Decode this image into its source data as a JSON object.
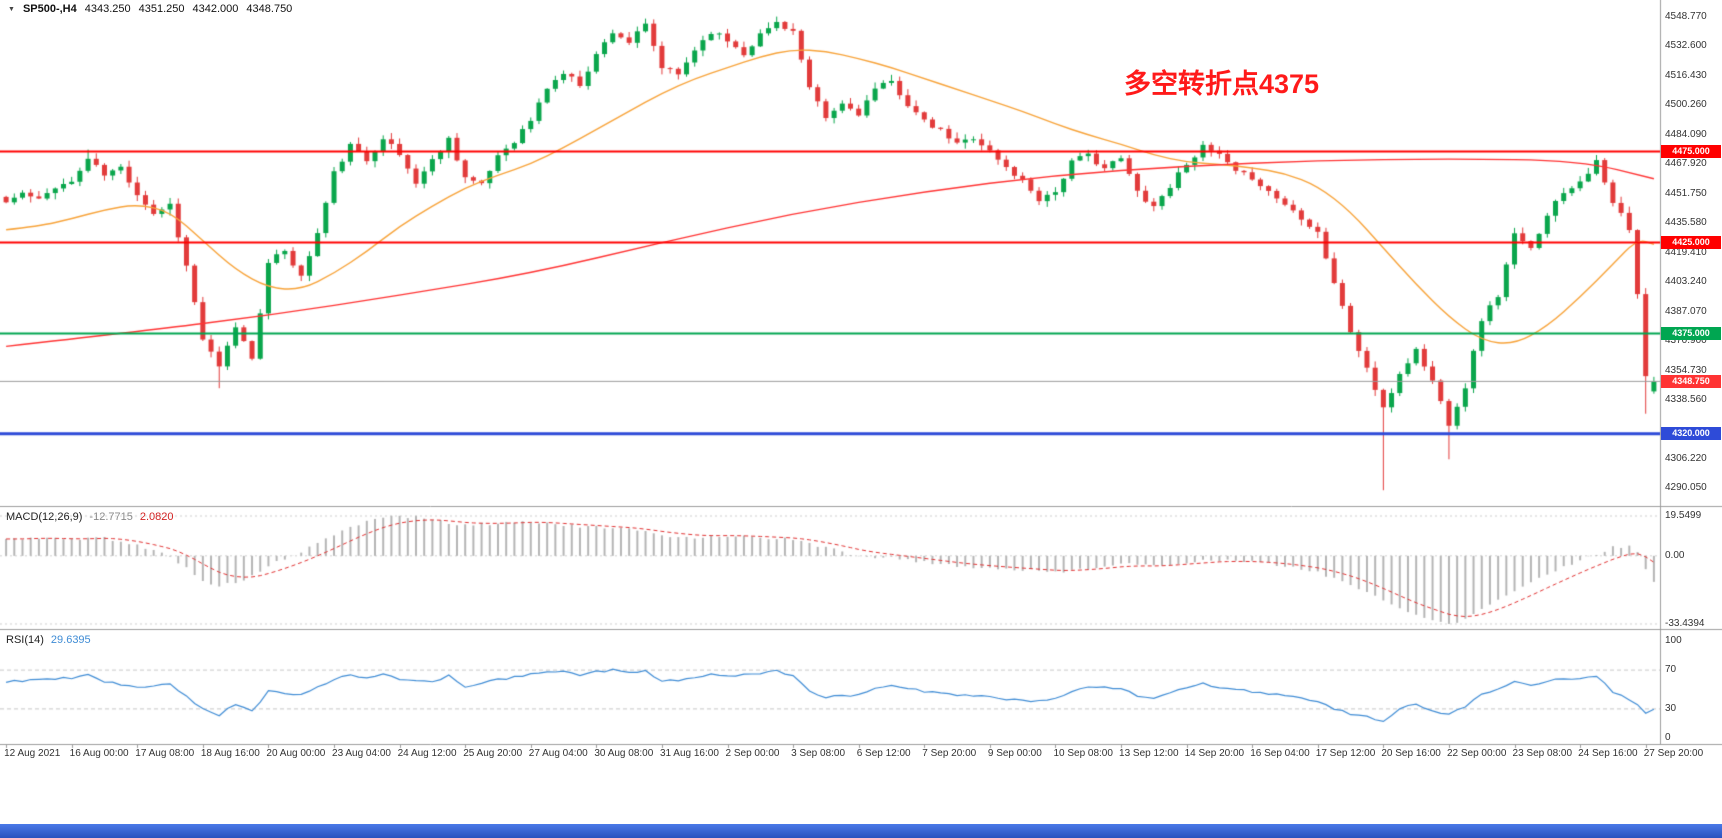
{
  "header": {
    "marker": "▼",
    "symbol": "SP500-,H4",
    "open": "4343.250",
    "high": "4351.250",
    "low": "4342.000",
    "close": "4348.750"
  },
  "annotation": {
    "text": "多空转折点4375",
    "color": "#ff1a1a"
  },
  "price_axis": {
    "labels": [
      "4548.770",
      "4532.600",
      "4516.430",
      "4500.260",
      "4484.090",
      "4467.920",
      "4451.750",
      "4435.580",
      "4419.410",
      "4403.240",
      "4387.070",
      "4370.900",
      "4354.730",
      "4338.560",
      "4306.220",
      "4290.050"
    ],
    "tags": [
      {
        "text": "4475.000",
        "value": 4475.0,
        "bg": "#ff0000"
      },
      {
        "text": "4425.000",
        "value": 4425.0,
        "bg": "#ff0000"
      },
      {
        "text": "4375.000",
        "value": 4375.0,
        "bg": "#00a651"
      },
      {
        "text": "4348.750",
        "value": 4348.75,
        "bg": "#ff3333"
      },
      {
        "text": "4320.000",
        "value": 4320.0,
        "bg": "#2e4bd8"
      }
    ]
  },
  "time_axis": {
    "labels": [
      "12 Aug 2021",
      "16 Aug 00:00",
      "17 Aug 08:00",
      "18 Aug 16:00",
      "20 Aug 00:00",
      "23 Aug 04:00",
      "24 Aug 12:00",
      "25 Aug 20:00",
      "27 Aug 04:00",
      "30 Aug 08:00",
      "31 Aug 16:00",
      "2 Sep 00:00",
      "3 Sep 08:00",
      "6 Sep 12:00",
      "7 Sep 20:00",
      "9 Sep 00:00",
      "10 Sep 08:00",
      "13 Sep 12:00",
      "14 Sep 20:00",
      "16 Sep 04:00",
      "17 Sep 12:00",
      "20 Sep 16:00",
      "22 Sep 00:00",
      "23 Sep 08:00",
      "24 Sep 16:00",
      "27 Sep 20:00"
    ]
  },
  "indicators": {
    "macd": {
      "name": "MACD(12,26,9)",
      "value_main": "-12.7715",
      "value_signal": "2.0820",
      "axis_labels": [
        {
          "text": "19.5499",
          "value": 19.5499
        },
        {
          "text": "0.00",
          "value": 0
        },
        {
          "text": "-33.4394",
          "value": -33.4394
        }
      ]
    },
    "rsi": {
      "name": "RSI(14)",
      "value": "29.6395",
      "axis_labels": [
        {
          "text": "100",
          "value": 100
        },
        {
          "text": "70",
          "value": 70
        },
        {
          "text": "30",
          "value": 30
        },
        {
          "text": "0",
          "value": 0
        }
      ],
      "levels": [
        70,
        30
      ]
    }
  },
  "chart_data": {
    "type": "candlestick",
    "title": "SP500-,H4",
    "timeframe": "H4",
    "bars": 202,
    "bars_per_label": 8,
    "price_range": [
      4283,
      4555
    ],
    "colors": {
      "up": "#0aa64c",
      "down": "#e23b3b",
      "ma_fast": "#f7a33a",
      "ma_slow": "#ff3333",
      "macd_hist": "#b5b5b5",
      "macd_signal": "#e03030",
      "rsi": "#3f8cd5",
      "current_line": "#9a9a9a",
      "grid": "#cfcfcf",
      "axis": "#9c9c9c"
    },
    "close_path": [
      [
        0,
        4447
      ],
      [
        2,
        4452
      ],
      [
        4,
        4448
      ],
      [
        6,
        4456
      ],
      [
        8,
        4458
      ],
      [
        10,
        4471
      ],
      [
        12,
        4462
      ],
      [
        14,
        4466
      ],
      [
        16,
        4452
      ],
      [
        18,
        4441
      ],
      [
        20,
        4446
      ],
      [
        22,
        4412
      ],
      [
        24,
        4372
      ],
      [
        26,
        4356
      ],
      [
        28,
        4379
      ],
      [
        30,
        4362
      ],
      [
        32,
        4413
      ],
      [
        34,
        4421
      ],
      [
        36,
        4406
      ],
      [
        38,
        4430
      ],
      [
        40,
        4463
      ],
      [
        42,
        4478
      ],
      [
        44,
        4470
      ],
      [
        46,
        4483
      ],
      [
        48,
        4473
      ],
      [
        50,
        4458
      ],
      [
        52,
        4470
      ],
      [
        54,
        4482
      ],
      [
        56,
        4461
      ],
      [
        58,
        4456
      ],
      [
        60,
        4473
      ],
      [
        62,
        4481
      ],
      [
        64,
        4492
      ],
      [
        66,
        4510
      ],
      [
        68,
        4518
      ],
      [
        70,
        4512
      ],
      [
        72,
        4528
      ],
      [
        74,
        4541
      ],
      [
        76,
        4535
      ],
      [
        78,
        4544
      ],
      [
        80,
        4521
      ],
      [
        82,
        4517
      ],
      [
        84,
        4531
      ],
      [
        86,
        4541
      ],
      [
        88,
        4536
      ],
      [
        90,
        4529
      ],
      [
        92,
        4539
      ],
      [
        94,
        4546
      ],
      [
        96,
        4541
      ],
      [
        98,
        4509
      ],
      [
        100,
        4493
      ],
      [
        102,
        4501
      ],
      [
        104,
        4496
      ],
      [
        106,
        4509
      ],
      [
        108,
        4513
      ],
      [
        110,
        4501
      ],
      [
        112,
        4491
      ],
      [
        114,
        4486
      ],
      [
        116,
        4479
      ],
      [
        118,
        4483
      ],
      [
        120,
        4475
      ],
      [
        122,
        4466
      ],
      [
        124,
        4459
      ],
      [
        126,
        4449
      ],
      [
        128,
        4453
      ],
      [
        130,
        4469
      ],
      [
        132,
        4473
      ],
      [
        134,
        4466
      ],
      [
        136,
        4471
      ],
      [
        138,
        4453
      ],
      [
        140,
        4445
      ],
      [
        142,
        4456
      ],
      [
        144,
        4469
      ],
      [
        146,
        4477
      ],
      [
        148,
        4473
      ],
      [
        150,
        4463
      ],
      [
        152,
        4461
      ],
      [
        154,
        4453
      ],
      [
        156,
        4446
      ],
      [
        158,
        4439
      ],
      [
        160,
        4431
      ],
      [
        162,
        4403
      ],
      [
        164,
        4376
      ],
      [
        166,
        4356
      ],
      [
        168,
        4333
      ],
      [
        170,
        4353
      ],
      [
        172,
        4366
      ],
      [
        174,
        4349
      ],
      [
        176,
        4326
      ],
      [
        178,
        4346
      ],
      [
        180,
        4383
      ],
      [
        182,
        4396
      ],
      [
        184,
        4429
      ],
      [
        186,
        4421
      ],
      [
        188,
        4441
      ],
      [
        190,
        4453
      ],
      [
        192,
        4459
      ],
      [
        194,
        4469
      ],
      [
        196,
        4446
      ],
      [
        197,
        4441
      ],
      [
        198,
        4431
      ],
      [
        199,
        4396
      ],
      [
        200,
        4352
      ],
      [
        201,
        4348.75
      ]
    ],
    "wick_overrides": [
      {
        "bar": 10,
        "high": 4476
      },
      {
        "bar": 26,
        "low": 4345
      },
      {
        "bar": 94,
        "high": 4549
      },
      {
        "bar": 168,
        "low": 4289
      },
      {
        "bar": 176,
        "low": 4306
      },
      {
        "bar": 200,
        "low": 4331
      }
    ],
    "last_candle": {
      "open": 4343.25,
      "high": 4351.25,
      "low": 4342.0,
      "close": 4348.75
    },
    "levels": [
      {
        "value": 4475.0,
        "color": "#ff0000",
        "width": 2
      },
      {
        "value": 4425.0,
        "color": "#ff0000",
        "width": 2
      },
      {
        "value": 4375.0,
        "color": "#00a651",
        "width": 2
      },
      {
        "value": 4320.0,
        "color": "#2e4bd8",
        "width": 3
      }
    ],
    "current_price": 4348.75,
    "ma_fast_points": [
      [
        0,
        4432
      ],
      [
        4,
        4434
      ],
      [
        8,
        4438
      ],
      [
        12,
        4443
      ],
      [
        16,
        4446
      ],
      [
        20,
        4442
      ],
      [
        24,
        4426
      ],
      [
        28,
        4410
      ],
      [
        32,
        4400
      ],
      [
        36,
        4399
      ],
      [
        40,
        4408
      ],
      [
        44,
        4420
      ],
      [
        48,
        4434
      ],
      [
        52,
        4445
      ],
      [
        56,
        4455
      ],
      [
        60,
        4462
      ],
      [
        64,
        4468
      ],
      [
        68,
        4477
      ],
      [
        72,
        4487
      ],
      [
        76,
        4497
      ],
      [
        80,
        4507
      ],
      [
        84,
        4515
      ],
      [
        88,
        4521
      ],
      [
        92,
        4527
      ],
      [
        96,
        4531
      ],
      [
        100,
        4530
      ],
      [
        104,
        4526
      ],
      [
        108,
        4521
      ],
      [
        112,
        4515
      ],
      [
        116,
        4509
      ],
      [
        120,
        4503
      ],
      [
        124,
        4497
      ],
      [
        128,
        4490
      ],
      [
        132,
        4484
      ],
      [
        136,
        4479
      ],
      [
        140,
        4473
      ],
      [
        144,
        4469
      ],
      [
        148,
        4468
      ],
      [
        152,
        4466
      ],
      [
        156,
        4463
      ],
      [
        160,
        4456
      ],
      [
        164,
        4442
      ],
      [
        168,
        4422
      ],
      [
        172,
        4402
      ],
      [
        176,
        4384
      ],
      [
        180,
        4371
      ],
      [
        184,
        4369
      ],
      [
        188,
        4379
      ],
      [
        192,
        4395
      ],
      [
        196,
        4413
      ],
      [
        199,
        4427
      ],
      [
        201,
        4424
      ]
    ],
    "ma_slow_points": [
      [
        0,
        4368
      ],
      [
        16,
        4376
      ],
      [
        32,
        4385
      ],
      [
        48,
        4396
      ],
      [
        64,
        4408
      ],
      [
        80,
        4425
      ],
      [
        96,
        4441
      ],
      [
        112,
        4453
      ],
      [
        128,
        4462
      ],
      [
        144,
        4467
      ],
      [
        160,
        4470
      ],
      [
        176,
        4471
      ],
      [
        192,
        4470
      ],
      [
        201,
        4460
      ]
    ],
    "macd_hist_path": [
      [
        0,
        8
      ],
      [
        4,
        9
      ],
      [
        8,
        8
      ],
      [
        12,
        9
      ],
      [
        16,
        5
      ],
      [
        20,
        0
      ],
      [
        24,
        -12
      ],
      [
        26,
        -15
      ],
      [
        28,
        -13
      ],
      [
        30,
        -10
      ],
      [
        32,
        -5
      ],
      [
        36,
        2
      ],
      [
        40,
        10
      ],
      [
        42,
        14
      ],
      [
        44,
        17
      ],
      [
        46,
        19
      ],
      [
        48,
        19.5
      ],
      [
        50,
        19
      ],
      [
        52,
        18
      ],
      [
        54,
        16
      ],
      [
        56,
        15
      ],
      [
        60,
        16
      ],
      [
        64,
        17
      ],
      [
        68,
        15
      ],
      [
        72,
        14
      ],
      [
        76,
        13
      ],
      [
        80,
        10
      ],
      [
        84,
        9
      ],
      [
        88,
        10
      ],
      [
        92,
        9
      ],
      [
        96,
        8
      ],
      [
        100,
        4
      ],
      [
        104,
        0
      ],
      [
        108,
        -1
      ],
      [
        112,
        -3
      ],
      [
        116,
        -5
      ],
      [
        120,
        -6
      ],
      [
        124,
        -7
      ],
      [
        128,
        -8
      ],
      [
        132,
        -6
      ],
      [
        136,
        -4
      ],
      [
        140,
        -5
      ],
      [
        144,
        -3
      ],
      [
        148,
        -2
      ],
      [
        152,
        -3
      ],
      [
        156,
        -5
      ],
      [
        160,
        -8
      ],
      [
        164,
        -14
      ],
      [
        168,
        -22
      ],
      [
        170,
        -26
      ],
      [
        172,
        -29
      ],
      [
        174,
        -31
      ],
      [
        176,
        -33.4
      ],
      [
        178,
        -31
      ],
      [
        180,
        -26
      ],
      [
        184,
        -17
      ],
      [
        188,
        -9
      ],
      [
        192,
        -2
      ],
      [
        194,
        1
      ],
      [
        196,
        4
      ],
      [
        198,
        5
      ],
      [
        199,
        2
      ],
      [
        200,
        -6
      ],
      [
        201,
        -12.77
      ]
    ],
    "macd_range": [
      -35,
      21
    ],
    "rsi_path": [
      [
        0,
        58
      ],
      [
        4,
        60
      ],
      [
        8,
        62
      ],
      [
        10,
        65
      ],
      [
        12,
        58
      ],
      [
        16,
        52
      ],
      [
        20,
        55
      ],
      [
        24,
        30
      ],
      [
        26,
        24
      ],
      [
        28,
        35
      ],
      [
        30,
        28
      ],
      [
        32,
        48
      ],
      [
        36,
        45
      ],
      [
        40,
        60
      ],
      [
        42,
        65
      ],
      [
        44,
        62
      ],
      [
        46,
        66
      ],
      [
        48,
        60
      ],
      [
        52,
        58
      ],
      [
        54,
        64
      ],
      [
        56,
        52
      ],
      [
        60,
        60
      ],
      [
        64,
        66
      ],
      [
        68,
        68
      ],
      [
        70,
        65
      ],
      [
        72,
        68
      ],
      [
        74,
        70
      ],
      [
        76,
        67
      ],
      [
        78,
        69
      ],
      [
        80,
        58
      ],
      [
        84,
        62
      ],
      [
        86,
        66
      ],
      [
        88,
        64
      ],
      [
        92,
        66
      ],
      [
        94,
        69
      ],
      [
        96,
        65
      ],
      [
        98,
        48
      ],
      [
        100,
        42
      ],
      [
        104,
        45
      ],
      [
        106,
        52
      ],
      [
        108,
        55
      ],
      [
        112,
        48
      ],
      [
        116,
        44
      ],
      [
        120,
        42
      ],
      [
        124,
        38
      ],
      [
        128,
        40
      ],
      [
        130,
        48
      ],
      [
        132,
        52
      ],
      [
        136,
        52
      ],
      [
        138,
        42
      ],
      [
        140,
        40
      ],
      [
        144,
        52
      ],
      [
        146,
        56
      ],
      [
        148,
        52
      ],
      [
        152,
        48
      ],
      [
        156,
        44
      ],
      [
        160,
        38
      ],
      [
        162,
        30
      ],
      [
        164,
        25
      ],
      [
        166,
        22
      ],
      [
        168,
        18
      ],
      [
        170,
        30
      ],
      [
        172,
        35
      ],
      [
        174,
        28
      ],
      [
        176,
        24
      ],
      [
        178,
        32
      ],
      [
        180,
        45
      ],
      [
        184,
        58
      ],
      [
        186,
        54
      ],
      [
        188,
        58
      ],
      [
        190,
        62
      ],
      [
        192,
        60
      ],
      [
        194,
        64
      ],
      [
        196,
        48
      ],
      [
        198,
        40
      ],
      [
        199,
        34
      ],
      [
        200,
        26
      ],
      [
        201,
        29.64
      ]
    ],
    "rsi_range": [
      0,
      100
    ]
  }
}
